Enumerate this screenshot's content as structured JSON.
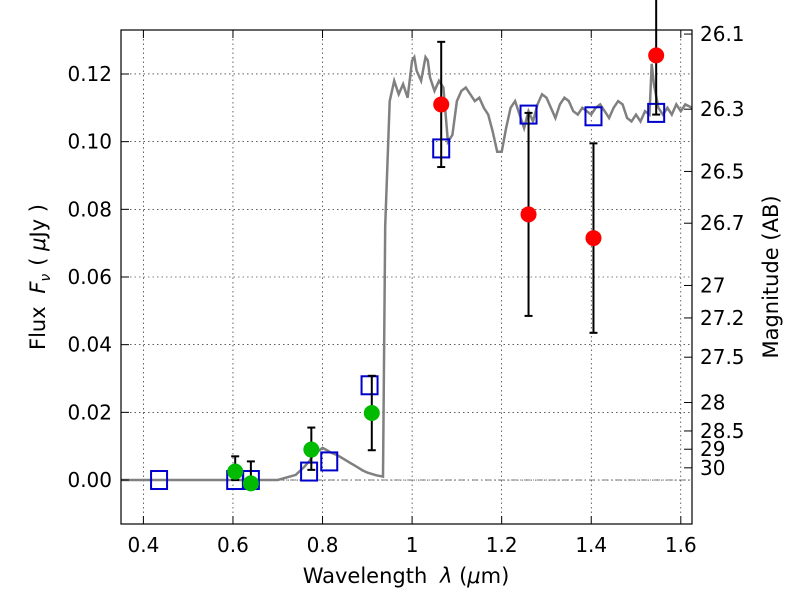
{
  "chart_data": {
    "type": "scatter",
    "xlabel": "Wavelength λ (μm)",
    "ylabel": "Flux F_ν (μJy)",
    "y2label": "Magnitude (AB)",
    "xlim": [
      0.35,
      1.625
    ],
    "ylim": [
      -0.013,
      0.133
    ],
    "grid": true,
    "x_ticks": [
      0.4,
      0.6,
      0.8,
      1.0,
      1.2,
      1.4,
      1.6
    ],
    "x_tick_labels": [
      "0.4",
      "0.6",
      "0.8",
      "1",
      "1.2",
      "1.4",
      "1.6"
    ],
    "y_ticks": [
      0.0,
      0.02,
      0.04,
      0.06,
      0.08,
      0.1,
      0.12
    ],
    "y_tick_labels": [
      "0.00",
      "0.02",
      "0.04",
      "0.06",
      "0.08",
      "0.10",
      "0.12"
    ],
    "y2_ticks": [
      {
        "label": "26.1",
        "flux": 0.1318
      },
      {
        "label": "26.3",
        "flux": 0.1096
      },
      {
        "label": "26.5",
        "flux": 0.0912
      },
      {
        "label": "26.7",
        "flux": 0.0759
      },
      {
        "label": "27",
        "flux": 0.0575
      },
      {
        "label": "27.2",
        "flux": 0.0479
      },
      {
        "label": "27.5",
        "flux": 0.0363
      },
      {
        "label": "28",
        "flux": 0.0229
      },
      {
        "label": "28.5",
        "flux": 0.0145
      },
      {
        "label": "29",
        "flux": 0.0091
      },
      {
        "label": "30",
        "flux": 0.0036
      }
    ],
    "series": [
      {
        "marker": "line",
        "color": "#808080",
        "points": [
          [
            0.35,
            0.0
          ],
          [
            0.5,
            0.0
          ],
          [
            0.7,
            0.0
          ],
          [
            0.74,
            0.0015
          ],
          [
            0.76,
            0.004
          ],
          [
            0.77,
            0.0055
          ],
          [
            0.78,
            0.0075
          ],
          [
            0.79,
            0.0085
          ],
          [
            0.8,
            0.0095
          ],
          [
            0.81,
            0.0088
          ],
          [
            0.82,
            0.008
          ],
          [
            0.83,
            0.0075
          ],
          [
            0.84,
            0.0068
          ],
          [
            0.85,
            0.006
          ],
          [
            0.86,
            0.0052
          ],
          [
            0.87,
            0.0044
          ],
          [
            0.88,
            0.0036
          ],
          [
            0.89,
            0.0028
          ],
          [
            0.9,
            0.0022
          ],
          [
            0.91,
            0.0018
          ],
          [
            0.92,
            0.0014
          ],
          [
            0.935,
            0.001
          ],
          [
            0.94,
            0.075
          ],
          [
            0.95,
            0.112
          ],
          [
            0.96,
            0.118
          ],
          [
            0.97,
            0.114
          ],
          [
            0.98,
            0.117
          ],
          [
            0.99,
            0.113
          ],
          [
            1.0,
            0.124
          ],
          [
            1.005,
            0.125
          ],
          [
            1.01,
            0.121
          ],
          [
            1.02,
            0.118
          ],
          [
            1.03,
            0.125
          ],
          [
            1.035,
            0.124
          ],
          [
            1.04,
            0.119
          ],
          [
            1.05,
            0.115
          ],
          [
            1.06,
            0.118
          ],
          [
            1.07,
            0.116
          ],
          [
            1.08,
            0.1
          ],
          [
            1.09,
            0.102
          ],
          [
            1.1,
            0.112
          ],
          [
            1.11,
            0.115
          ],
          [
            1.12,
            0.116
          ],
          [
            1.13,
            0.114
          ],
          [
            1.14,
            0.112
          ],
          [
            1.15,
            0.113
          ],
          [
            1.16,
            0.11
          ],
          [
            1.17,
            0.108
          ],
          [
            1.18,
            0.103
          ],
          [
            1.19,
            0.097
          ],
          [
            1.2,
            0.097
          ],
          [
            1.21,
            0.104
          ],
          [
            1.22,
            0.11
          ],
          [
            1.23,
            0.112
          ],
          [
            1.24,
            0.108
          ],
          [
            1.25,
            0.104
          ],
          [
            1.26,
            0.109
          ],
          [
            1.27,
            0.106
          ],
          [
            1.28,
            0.111
          ],
          [
            1.29,
            0.114
          ],
          [
            1.3,
            0.113
          ],
          [
            1.31,
            0.11
          ],
          [
            1.32,
            0.107
          ],
          [
            1.33,
            0.111
          ],
          [
            1.34,
            0.113
          ],
          [
            1.35,
            0.112
          ],
          [
            1.36,
            0.109
          ],
          [
            1.37,
            0.108
          ],
          [
            1.38,
            0.11
          ],
          [
            1.39,
            0.109
          ],
          [
            1.4,
            0.108
          ],
          [
            1.41,
            0.11
          ],
          [
            1.42,
            0.111
          ],
          [
            1.43,
            0.109
          ],
          [
            1.44,
            0.107
          ],
          [
            1.45,
            0.11
          ],
          [
            1.46,
            0.112
          ],
          [
            1.47,
            0.111
          ],
          [
            1.48,
            0.107
          ],
          [
            1.49,
            0.106
          ],
          [
            1.5,
            0.108
          ],
          [
            1.51,
            0.106
          ],
          [
            1.52,
            0.109
          ],
          [
            1.53,
            0.108
          ],
          [
            1.535,
            0.123
          ],
          [
            1.54,
            0.117
          ],
          [
            1.55,
            0.11
          ],
          [
            1.56,
            0.108
          ],
          [
            1.57,
            0.11
          ],
          [
            1.58,
            0.108
          ],
          [
            1.59,
            0.111
          ],
          [
            1.6,
            0.109
          ],
          [
            1.61,
            0.111
          ],
          [
            1.625,
            0.11
          ]
        ]
      },
      {
        "marker": "square",
        "color": "#0000cc",
        "points": [
          [
            0.435,
            0.0
          ],
          [
            0.605,
            0.0
          ],
          [
            0.64,
            0.0
          ],
          [
            0.77,
            0.0025
          ],
          [
            0.815,
            0.0055
          ],
          [
            0.905,
            0.028
          ],
          [
            1.065,
            0.098
          ],
          [
            1.26,
            0.108
          ],
          [
            1.405,
            0.1075
          ],
          [
            1.545,
            0.1085
          ]
        ]
      },
      {
        "marker": "circle",
        "color": "#00bb00",
        "points": [
          {
            "x": 0.605,
            "y": 0.0025,
            "err": [
              0.0025,
              0.0045
            ]
          },
          {
            "x": 0.64,
            "y": -0.001,
            "err": [
              0.0,
              0.0065
            ]
          },
          {
            "x": 0.775,
            "y": 0.009,
            "err": [
              0.006,
              0.0065
            ]
          },
          {
            "x": 0.91,
            "y": 0.0198,
            "err": [
              0.011,
              0.011
            ]
          }
        ]
      },
      {
        "marker": "circle",
        "color": "#ff0000",
        "points": [
          {
            "x": 1.065,
            "y": 0.111,
            "err": [
              0.0185,
              0.0185
            ]
          },
          {
            "x": 1.26,
            "y": 0.0785,
            "err": [
              0.03,
              0.03
            ]
          },
          {
            "x": 1.405,
            "y": 0.0715,
            "err": [
              0.028,
              0.028
            ]
          },
          {
            "x": 1.545,
            "y": 0.1255,
            "err": [
              0.0175,
              0.0175
            ]
          }
        ]
      }
    ]
  }
}
